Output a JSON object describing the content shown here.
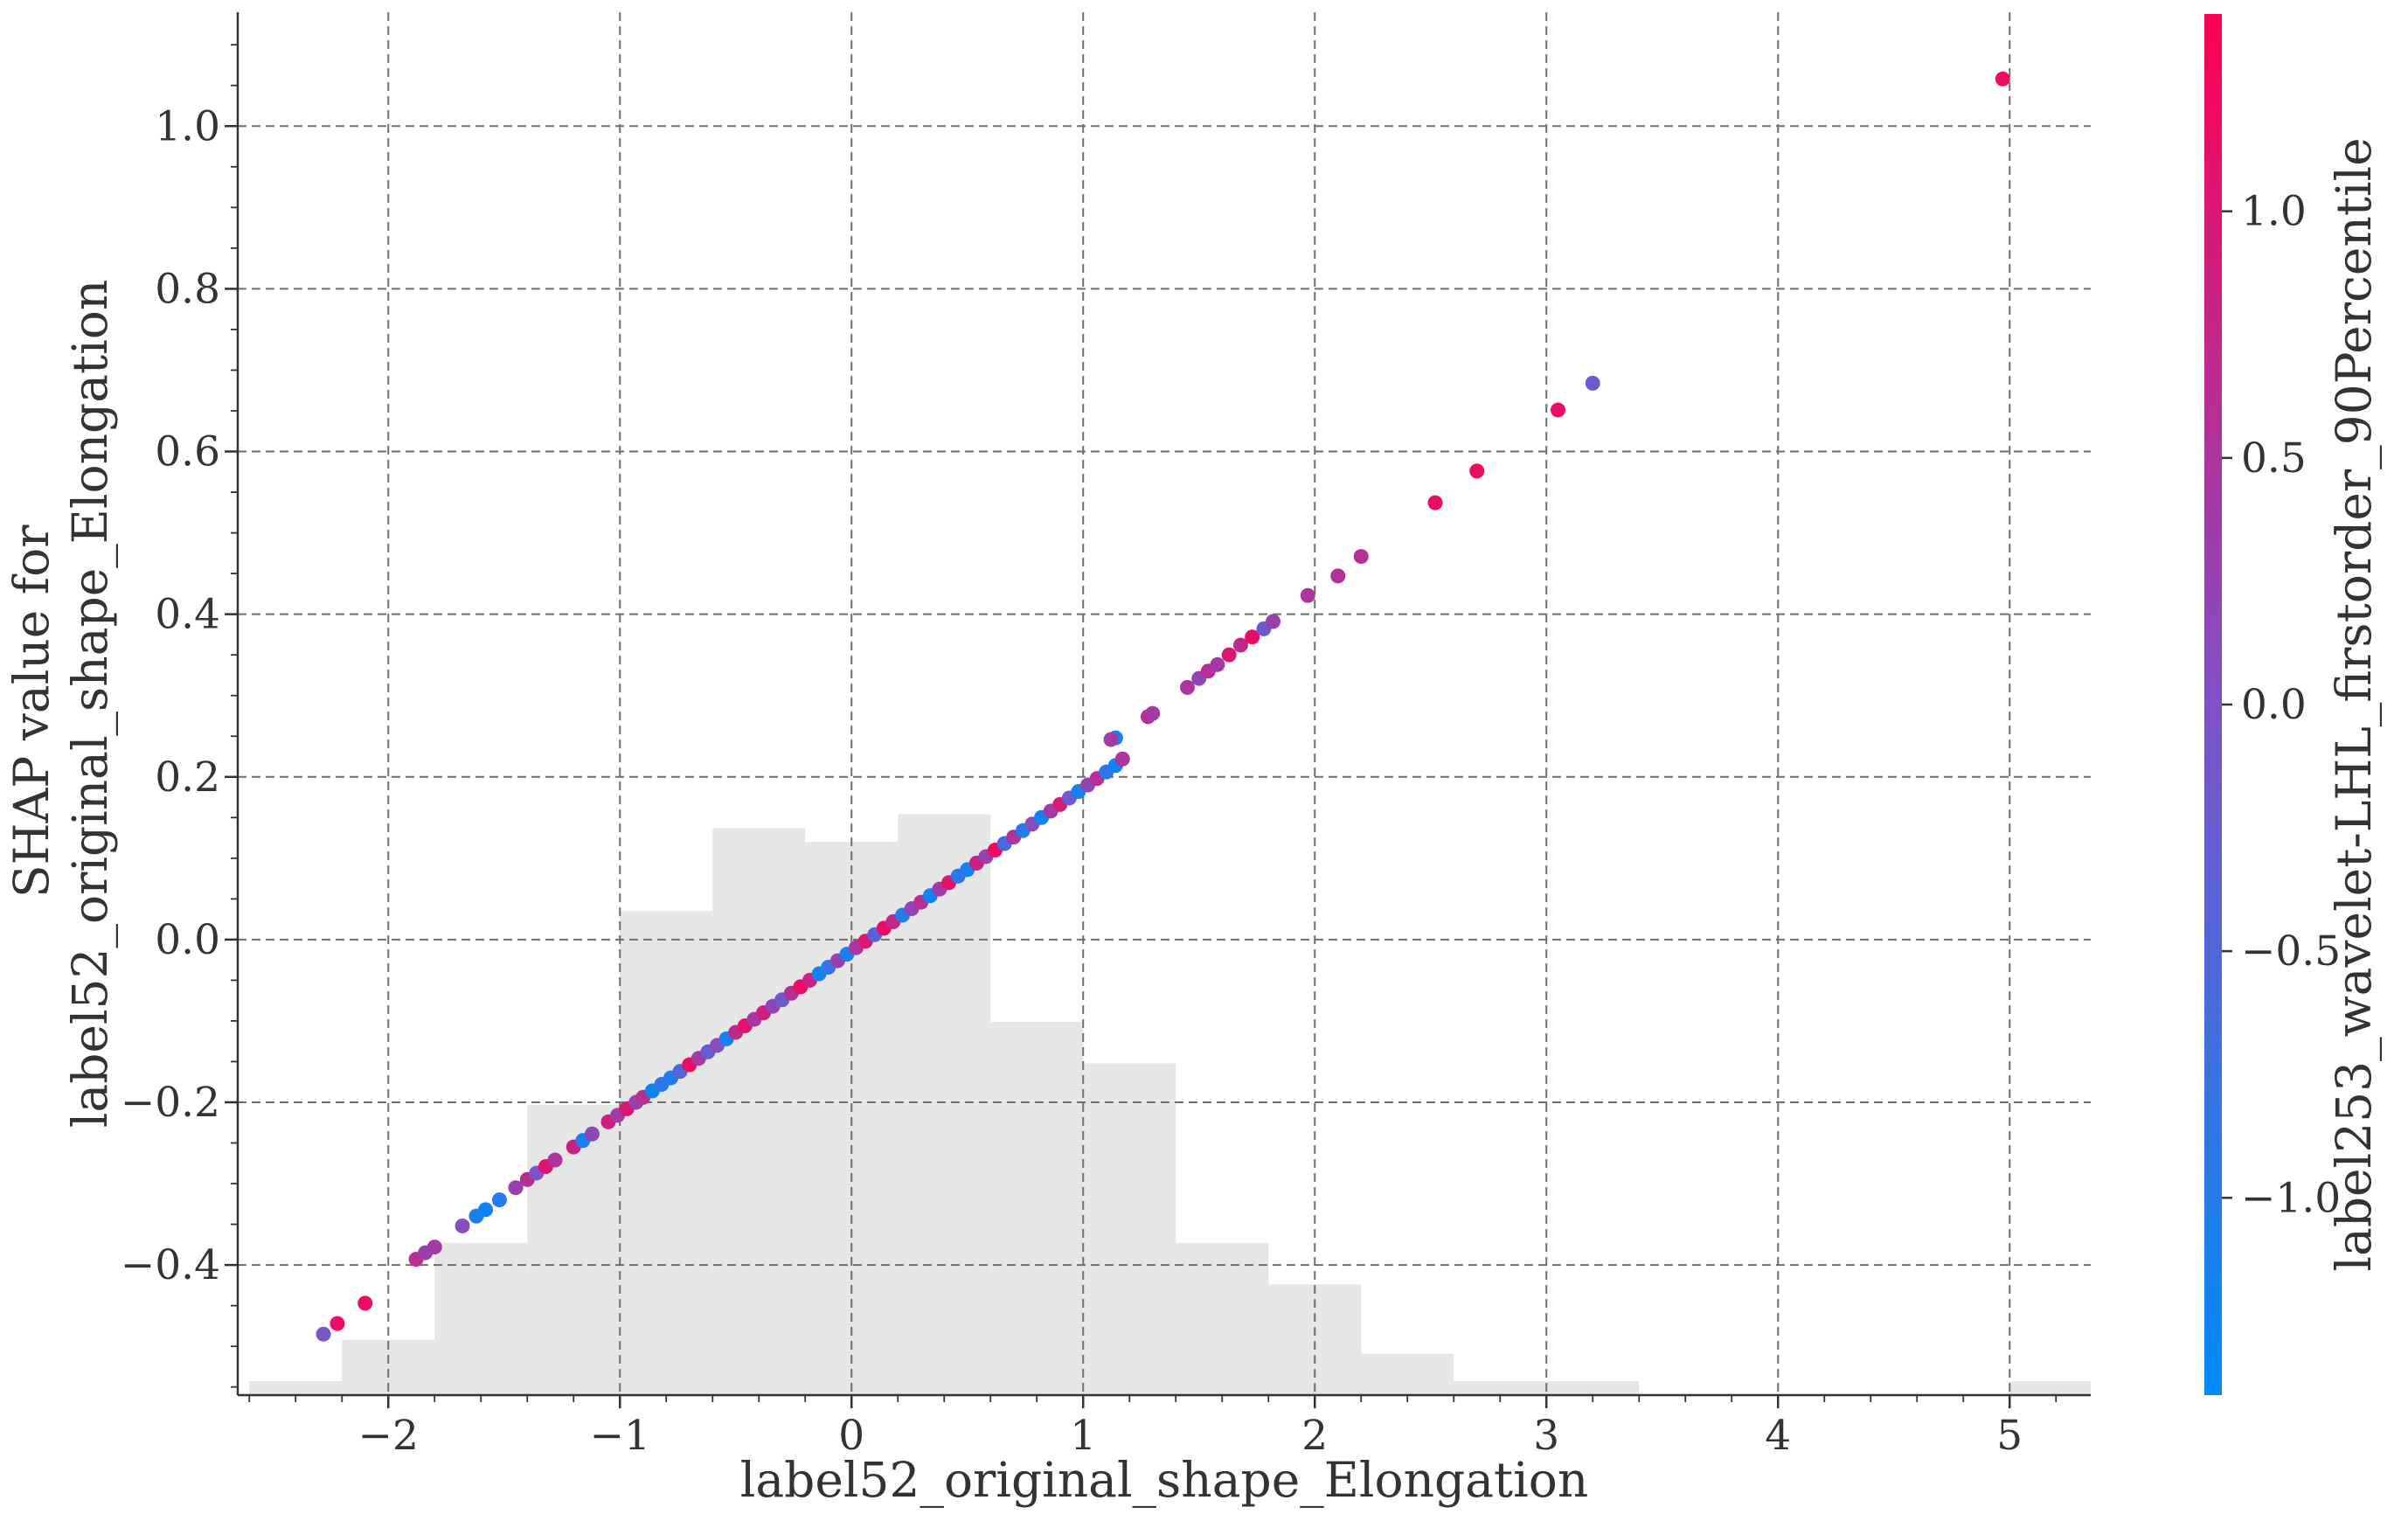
{
  "chart_data": {
    "type": "scatter",
    "title": "",
    "xlabel": "label52_original_shape_Elongation",
    "ylabel": [
      "SHAP value for",
      "label52_original_shape_Elongation"
    ],
    "xlim": [
      -2.65,
      5.35
    ],
    "ylim": [
      -0.56,
      1.14
    ],
    "x_ticks": [
      -2,
      -1,
      0,
      1,
      2,
      3,
      4,
      5
    ],
    "x_tick_labels": [
      "−2",
      "−1",
      "0",
      "1",
      "2",
      "3",
      "4",
      "5"
    ],
    "y_ticks": [
      -0.4,
      -0.2,
      0.0,
      0.2,
      0.4,
      0.6,
      0.8,
      1.0
    ],
    "y_tick_labels": [
      "−0.4",
      "−0.2",
      "0.0",
      "0.2",
      "0.4",
      "0.6",
      "0.8",
      "1.0"
    ],
    "grid": true,
    "colorbar": {
      "label": "label253_wavelet-LHL_firstorder_90Percentile",
      "range": [
        -1.4,
        1.4
      ],
      "ticks": [
        -1.0,
        -0.5,
        0.0,
        0.5,
        1.0
      ],
      "tick_labels": [
        "−1.0",
        "−0.5",
        "0.0",
        "0.5",
        "1.0"
      ],
      "colors": [
        "#008bfb",
        "#7f52c6",
        "#ff0052"
      ]
    },
    "histogram": {
      "bin_edges": [
        -2.6,
        -2.2,
        -1.8,
        -1.4,
        -1.0,
        -0.6,
        -0.2,
        0.2,
        0.6,
        1.0,
        1.4,
        1.8,
        2.2,
        2.6,
        3.0,
        3.4,
        3.8,
        4.2,
        4.6,
        5.0,
        5.35
      ],
      "heights": [
        0.01,
        0.04,
        0.11,
        0.21,
        0.35,
        0.41,
        0.4,
        0.42,
        0.27,
        0.24,
        0.11,
        0.08,
        0.03,
        0.01,
        0.01,
        0.0,
        0.0,
        0.0,
        0.0,
        0.01
      ]
    },
    "points": [
      {
        "x": -2.28,
        "y": -0.485,
        "c": -0.1
      },
      {
        "x": -2.22,
        "y": -0.472,
        "c": 1.2
      },
      {
        "x": -2.1,
        "y": -0.447,
        "c": 1.2
      },
      {
        "x": -1.88,
        "y": -0.393,
        "c": 0.6
      },
      {
        "x": -1.84,
        "y": -0.385,
        "c": 0.3
      },
      {
        "x": -1.8,
        "y": -0.378,
        "c": 0.4
      },
      {
        "x": -1.68,
        "y": -0.352,
        "c": 0.1
      },
      {
        "x": -1.62,
        "y": -0.34,
        "c": -1.1
      },
      {
        "x": -1.58,
        "y": -0.332,
        "c": -1.2
      },
      {
        "x": -1.52,
        "y": -0.32,
        "c": -1.0
      },
      {
        "x": -1.45,
        "y": -0.305,
        "c": 0.3
      },
      {
        "x": -1.4,
        "y": -0.295,
        "c": 0.6
      },
      {
        "x": -1.36,
        "y": -0.287,
        "c": 0.0
      },
      {
        "x": -1.32,
        "y": -0.279,
        "c": 1.0
      },
      {
        "x": -1.28,
        "y": -0.271,
        "c": 0.5
      },
      {
        "x": -1.2,
        "y": -0.255,
        "c": 0.8
      },
      {
        "x": -1.16,
        "y": -0.247,
        "c": -1.1
      },
      {
        "x": -1.12,
        "y": -0.239,
        "c": 0.2
      },
      {
        "x": -1.05,
        "y": -0.224,
        "c": 0.9
      },
      {
        "x": -1.01,
        "y": -0.216,
        "c": 0.4
      },
      {
        "x": -0.97,
        "y": -0.208,
        "c": 1.0
      },
      {
        "x": -0.93,
        "y": -0.2,
        "c": 0.3
      },
      {
        "x": -0.9,
        "y": -0.194,
        "c": 0.6
      },
      {
        "x": -0.86,
        "y": -0.186,
        "c": -1.2
      },
      {
        "x": -0.82,
        "y": -0.178,
        "c": -0.9
      },
      {
        "x": -0.78,
        "y": -0.17,
        "c": -1.0
      },
      {
        "x": -0.74,
        "y": -0.162,
        "c": -0.5
      },
      {
        "x": -0.7,
        "y": -0.154,
        "c": 1.2
      },
      {
        "x": -0.66,
        "y": -0.146,
        "c": 0.4
      },
      {
        "x": -0.62,
        "y": -0.138,
        "c": -0.3
      },
      {
        "x": -0.58,
        "y": -0.13,
        "c": 0.1
      },
      {
        "x": -0.54,
        "y": -0.122,
        "c": -1.1
      },
      {
        "x": -0.5,
        "y": -0.114,
        "c": 0.7
      },
      {
        "x": -0.46,
        "y": -0.106,
        "c": 1.1
      },
      {
        "x": -0.42,
        "y": -0.098,
        "c": 0.4
      },
      {
        "x": -0.38,
        "y": -0.09,
        "c": 0.9
      },
      {
        "x": -0.34,
        "y": -0.082,
        "c": 0.2
      },
      {
        "x": -0.3,
        "y": -0.074,
        "c": -0.2
      },
      {
        "x": -0.26,
        "y": -0.066,
        "c": 0.6
      },
      {
        "x": -0.22,
        "y": -0.058,
        "c": 1.2
      },
      {
        "x": -0.18,
        "y": -0.05,
        "c": 0.8
      },
      {
        "x": -0.14,
        "y": -0.042,
        "c": -1.2
      },
      {
        "x": -0.1,
        "y": -0.034,
        "c": -0.8
      },
      {
        "x": -0.06,
        "y": -0.026,
        "c": 0.3
      },
      {
        "x": -0.02,
        "y": -0.018,
        "c": -1.1
      },
      {
        "x": 0.02,
        "y": -0.01,
        "c": 0.5
      },
      {
        "x": 0.06,
        "y": -0.002,
        "c": 1.0
      },
      {
        "x": 0.1,
        "y": 0.006,
        "c": -0.4
      },
      {
        "x": 0.14,
        "y": 0.014,
        "c": 1.2
      },
      {
        "x": 0.18,
        "y": 0.022,
        "c": 0.7
      },
      {
        "x": 0.22,
        "y": 0.03,
        "c": -1.0
      },
      {
        "x": 0.26,
        "y": 0.038,
        "c": 0.2
      },
      {
        "x": 0.3,
        "y": 0.046,
        "c": 0.6
      },
      {
        "x": 0.34,
        "y": 0.054,
        "c": -1.2
      },
      {
        "x": 0.38,
        "y": 0.062,
        "c": 0.4
      },
      {
        "x": 0.42,
        "y": 0.07,
        "c": 1.1
      },
      {
        "x": 0.46,
        "y": 0.078,
        "c": -0.9
      },
      {
        "x": 0.5,
        "y": 0.086,
        "c": -1.1
      },
      {
        "x": 0.54,
        "y": 0.094,
        "c": 0.8
      },
      {
        "x": 0.58,
        "y": 0.102,
        "c": 0.3
      },
      {
        "x": 0.62,
        "y": 0.11,
        "c": 1.2
      },
      {
        "x": 0.66,
        "y": 0.118,
        "c": -0.6
      },
      {
        "x": 0.7,
        "y": 0.126,
        "c": 0.5
      },
      {
        "x": 0.74,
        "y": 0.134,
        "c": -1.0
      },
      {
        "x": 0.78,
        "y": 0.142,
        "c": 0.1
      },
      {
        "x": 0.82,
        "y": 0.15,
        "c": -1.2
      },
      {
        "x": 0.86,
        "y": 0.158,
        "c": 0.4
      },
      {
        "x": 0.9,
        "y": 0.166,
        "c": 0.9
      },
      {
        "x": 0.94,
        "y": 0.174,
        "c": -0.2
      },
      {
        "x": 0.98,
        "y": 0.182,
        "c": -1.1
      },
      {
        "x": 1.02,
        "y": 0.19,
        "c": 0.2
      },
      {
        "x": 1.06,
        "y": 0.198,
        "c": 0.6
      },
      {
        "x": 1.1,
        "y": 0.206,
        "c": -0.9
      },
      {
        "x": 1.14,
        "y": 0.214,
        "c": -1.2
      },
      {
        "x": 1.17,
        "y": 0.222,
        "c": 0.5
      },
      {
        "x": 1.14,
        "y": 0.248,
        "c": -1.2
      },
      {
        "x": 1.12,
        "y": 0.246,
        "c": 0.4
      },
      {
        "x": 1.28,
        "y": 0.274,
        "c": 0.6
      },
      {
        "x": 1.3,
        "y": 0.278,
        "c": 0.4
      },
      {
        "x": 1.45,
        "y": 0.31,
        "c": 0.5
      },
      {
        "x": 1.5,
        "y": 0.321,
        "c": 0.2
      },
      {
        "x": 1.54,
        "y": 0.33,
        "c": 0.6
      },
      {
        "x": 1.58,
        "y": 0.338,
        "c": 0.4
      },
      {
        "x": 1.63,
        "y": 0.35,
        "c": 1.0
      },
      {
        "x": 1.68,
        "y": 0.362,
        "c": 0.7
      },
      {
        "x": 1.73,
        "y": 0.372,
        "c": 1.2
      },
      {
        "x": 1.78,
        "y": 0.382,
        "c": -0.2
      },
      {
        "x": 1.82,
        "y": 0.391,
        "c": 0.3
      },
      {
        "x": 1.97,
        "y": 0.423,
        "c": 0.5
      },
      {
        "x": 2.1,
        "y": 0.447,
        "c": 0.6
      },
      {
        "x": 2.2,
        "y": 0.471,
        "c": 0.6
      },
      {
        "x": 2.52,
        "y": 0.537,
        "c": 1.2
      },
      {
        "x": 2.7,
        "y": 0.576,
        "c": 1.2
      },
      {
        "x": 3.05,
        "y": 0.651,
        "c": 1.2
      },
      {
        "x": 3.2,
        "y": 0.684,
        "c": -0.2
      },
      {
        "x": 4.97,
        "y": 1.058,
        "c": 1.2
      }
    ]
  }
}
